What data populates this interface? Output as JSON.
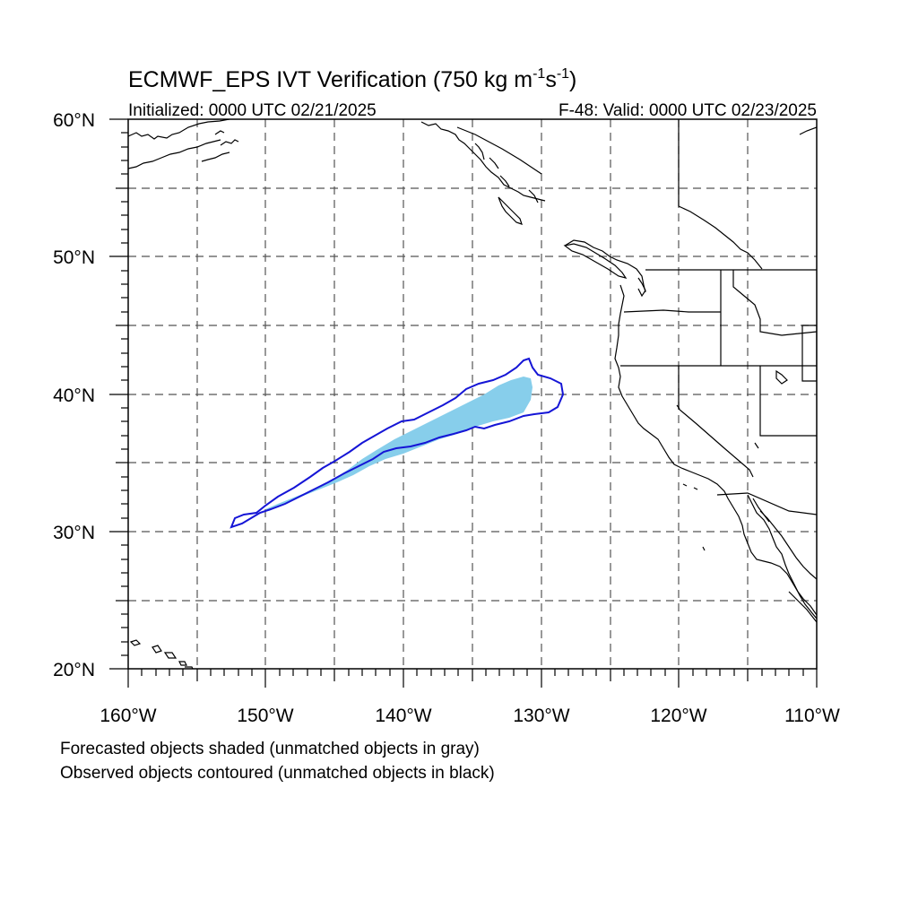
{
  "title": {
    "main": "ECMWF_EPS IVT Verification (750 kg m",
    "sup1": "-1",
    "mid": "s",
    "sup2": "-1",
    "end": ")"
  },
  "subtitle_left": "Initialized: 0000 UTC 02/21/2025",
  "subtitle_right": "F-48: Valid: 0000 UTC 02/23/2025",
  "lat_labels": [
    "60°N",
    "50°N",
    "40°N",
    "30°N",
    "20°N"
  ],
  "lon_labels": [
    "160°W",
    "150°W",
    "140°W",
    "130°W",
    "120°W",
    "110°W"
  ],
  "caption_1": "Forecasted objects shaded (unmatched objects in gray)",
  "caption_2": "Observed objects contoured (unmatched objects in black)",
  "colors": {
    "forecast_fill": "#87ceeb",
    "observed_contour": "#1515d6",
    "coastline": "#000000",
    "grid": "#555555"
  },
  "map_extent": {
    "lon_min": -160,
    "lon_max": -110,
    "lat_min": 20,
    "lat_max": 60
  }
}
